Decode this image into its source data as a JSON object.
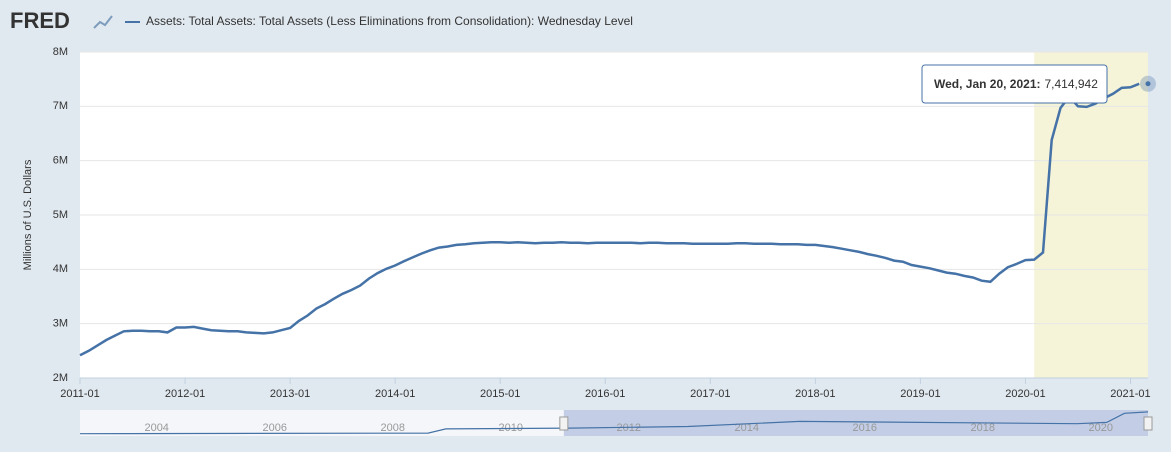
{
  "chart_data": {
    "type": "line",
    "logo": "FRED",
    "ylabel": "Millions of U.S. Dollars",
    "x": [
      "2011-01",
      "2011-02",
      "2011-03",
      "2011-04",
      "2011-05",
      "2011-06",
      "2011-07",
      "2011-08",
      "2011-09",
      "2011-10",
      "2011-11",
      "2011-12",
      "2012-01",
      "2012-02",
      "2012-03",
      "2012-04",
      "2012-05",
      "2012-06",
      "2012-07",
      "2012-08",
      "2012-09",
      "2012-10",
      "2012-11",
      "2012-12",
      "2013-01",
      "2013-02",
      "2013-03",
      "2013-04",
      "2013-05",
      "2013-06",
      "2013-07",
      "2013-08",
      "2013-09",
      "2013-10",
      "2013-11",
      "2013-12",
      "2014-01",
      "2014-02",
      "2014-03",
      "2014-04",
      "2014-05",
      "2014-06",
      "2014-07",
      "2014-08",
      "2014-09",
      "2014-10",
      "2014-11",
      "2014-12",
      "2015-01",
      "2015-02",
      "2015-03",
      "2015-04",
      "2015-05",
      "2015-06",
      "2015-07",
      "2015-08",
      "2015-09",
      "2015-10",
      "2015-11",
      "2015-12",
      "2016-01",
      "2016-02",
      "2016-03",
      "2016-04",
      "2016-05",
      "2016-06",
      "2016-07",
      "2016-08",
      "2016-09",
      "2016-10",
      "2016-11",
      "2016-12",
      "2017-01",
      "2017-02",
      "2017-03",
      "2017-04",
      "2017-05",
      "2017-06",
      "2017-07",
      "2017-08",
      "2017-09",
      "2017-10",
      "2017-11",
      "2017-12",
      "2018-01",
      "2018-02",
      "2018-03",
      "2018-04",
      "2018-05",
      "2018-06",
      "2018-07",
      "2018-08",
      "2018-09",
      "2018-10",
      "2018-11",
      "2018-12",
      "2019-01",
      "2019-02",
      "2019-03",
      "2019-04",
      "2019-05",
      "2019-06",
      "2019-07",
      "2019-08",
      "2019-09",
      "2019-10",
      "2019-11",
      "2019-12",
      "2020-01",
      "2020-02",
      "2020-03",
      "2020-04",
      "2020-05",
      "2020-06",
      "2020-07",
      "2020-08",
      "2020-09",
      "2020-10",
      "2020-11",
      "2020-12",
      "2021-01",
      "2021-02"
    ],
    "series": [
      {
        "name": "Assets: Total Assets: Total Assets (Less Eliminations from Consolidation): Wednesday Level",
        "color": "#4572a7",
        "values": [
          2420000,
          2500000,
          2600000,
          2700000,
          2780000,
          2860000,
          2870000,
          2870000,
          2860000,
          2860000,
          2840000,
          2930000,
          2930000,
          2940000,
          2910000,
          2880000,
          2870000,
          2860000,
          2860000,
          2840000,
          2830000,
          2820000,
          2840000,
          2880000,
          2920000,
          3050000,
          3150000,
          3280000,
          3360000,
          3460000,
          3550000,
          3620000,
          3700000,
          3830000,
          3930000,
          4010000,
          4070000,
          4150000,
          4220000,
          4290000,
          4350000,
          4400000,
          4420000,
          4450000,
          4460000,
          4480000,
          4490000,
          4500000,
          4500000,
          4490000,
          4500000,
          4490000,
          4480000,
          4490000,
          4490000,
          4500000,
          4490000,
          4490000,
          4480000,
          4490000,
          4490000,
          4490000,
          4490000,
          4490000,
          4480000,
          4490000,
          4490000,
          4480000,
          4480000,
          4480000,
          4470000,
          4470000,
          4470000,
          4470000,
          4470000,
          4480000,
          4480000,
          4470000,
          4470000,
          4470000,
          4460000,
          4460000,
          4460000,
          4450000,
          4450000,
          4430000,
          4410000,
          4380000,
          4350000,
          4320000,
          4280000,
          4250000,
          4210000,
          4160000,
          4140000,
          4080000,
          4050000,
          4020000,
          3980000,
          3940000,
          3920000,
          3880000,
          3850000,
          3790000,
          3770000,
          3920000,
          4040000,
          4100000,
          4170000,
          4180000,
          4310000,
          6380000,
          6970000,
          7180000,
          7000000,
          6990000,
          7050000,
          7150000,
          7230000,
          7340000,
          7350000,
          7414942
        ]
      }
    ],
    "xlim": [
      "2011-01",
      "2021-03"
    ],
    "xticks": [
      "2011-01",
      "2012-01",
      "2013-01",
      "2014-01",
      "2015-01",
      "2016-01",
      "2017-01",
      "2018-01",
      "2019-01",
      "2020-01",
      "2021-01"
    ],
    "ylim": [
      2000000,
      8000000
    ],
    "yticks": [
      {
        "value": 2000000,
        "label": "2M"
      },
      {
        "value": 3000000,
        "label": "3M"
      },
      {
        "value": 4000000,
        "label": "4M"
      },
      {
        "value": 5000000,
        "label": "5M"
      },
      {
        "value": 6000000,
        "label": "6M"
      },
      {
        "value": 7000000,
        "label": "7M"
      },
      {
        "value": 8000000,
        "label": "8M"
      }
    ],
    "grid": true,
    "recession": {
      "start": "2020-02",
      "end": "2021-03",
      "color": "#f5f3d8"
    },
    "tooltip": {
      "date": "Wed, Jan 20, 2021:",
      "value": 7414942,
      "value_label": "7,414,942"
    },
    "navigator": {
      "xlim": [
        2002.7,
        2020.8
      ],
      "ylim": [
        0,
        8000000
      ],
      "xticks": [
        2004,
        2006,
        2008,
        2010,
        2012,
        2014,
        2016,
        2018,
        2020
      ],
      "x": [
        2002.7,
        2008.6,
        2008.9,
        2010.0,
        2011.0,
        2013.0,
        2014.9,
        2019.6,
        2020.1,
        2020.4,
        2020.8
      ],
      "values": [
        720000,
        900000,
        2200000,
        2300000,
        2420000,
        2920000,
        4500000,
        3770000,
        4180000,
        7000000,
        7414942
      ],
      "selection": [
        2010.9,
        2020.8
      ]
    }
  }
}
